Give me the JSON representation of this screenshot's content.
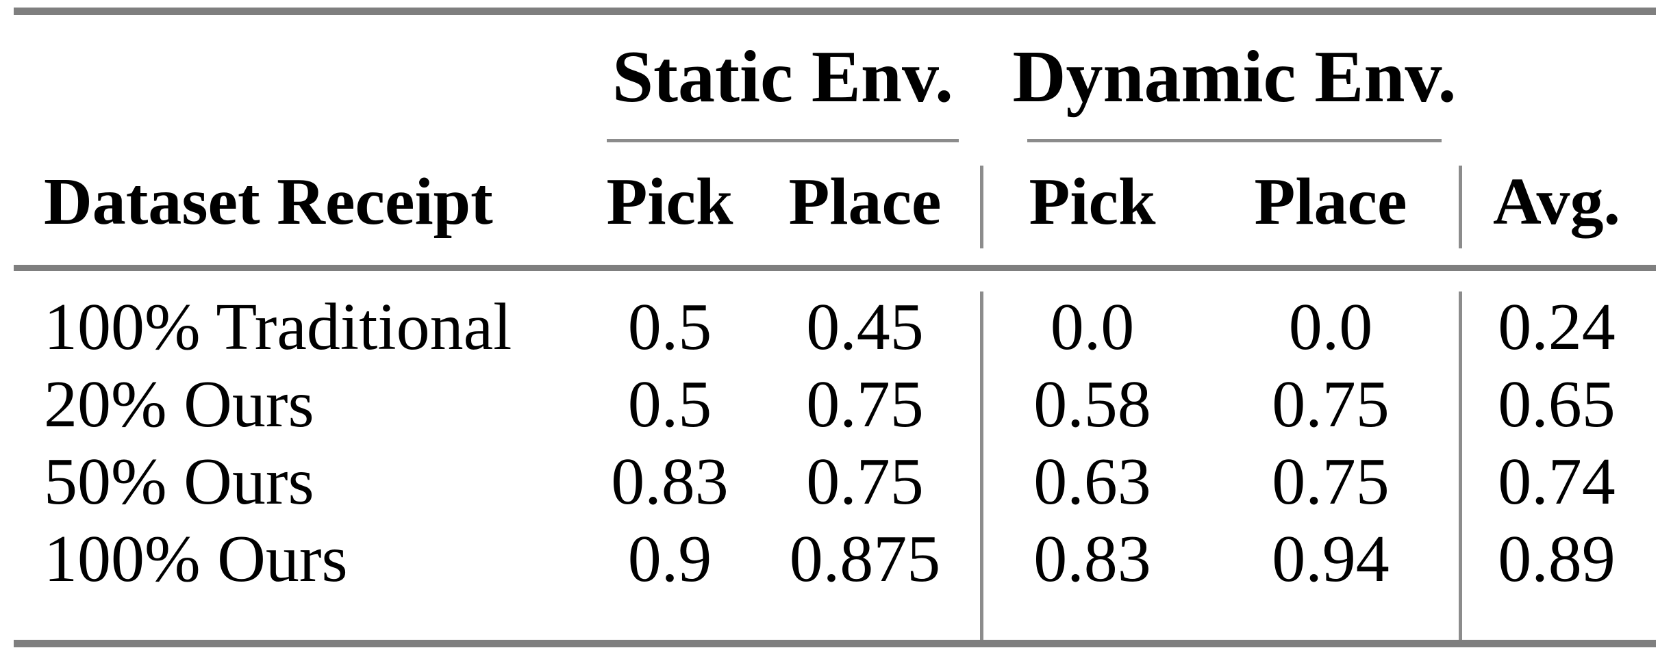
{
  "table": {
    "groups": [
      {
        "label": "Static Env."
      },
      {
        "label": "Dynamic Env."
      }
    ],
    "header": {
      "row_label": "Dataset Receipt",
      "cols": [
        "Pick",
        "Place",
        "Pick",
        "Place",
        "Avg."
      ]
    },
    "rows": [
      {
        "label": "100% Traditional",
        "values": [
          "0.5",
          "0.45",
          "0.0",
          "0.0",
          "0.24"
        ]
      },
      {
        "label": "20% Ours",
        "values": [
          "0.5",
          "0.75",
          "0.58",
          "0.75",
          "0.65"
        ]
      },
      {
        "label": "50% Ours",
        "values": [
          "0.83",
          "0.75",
          "0.63",
          "0.75",
          "0.74"
        ]
      },
      {
        "label": "100% Ours",
        "values": [
          "0.9",
          "0.875",
          "0.83",
          "0.94",
          "0.89"
        ]
      }
    ]
  },
  "chart_data": {
    "type": "table",
    "column_groups": [
      {
        "label": "Static Env.",
        "columns": [
          "Pick",
          "Place"
        ]
      },
      {
        "label": "Dynamic Env.",
        "columns": [
          "Pick",
          "Place"
        ]
      }
    ],
    "columns": [
      "Dataset Receipt",
      "Static Pick",
      "Static Place",
      "Dynamic Pick",
      "Dynamic Place",
      "Avg."
    ],
    "rows": [
      [
        "100% Traditional",
        0.5,
        0.45,
        0.0,
        0.0,
        0.24
      ],
      [
        "20% Ours",
        0.5,
        0.75,
        0.58,
        0.75,
        0.65
      ],
      [
        "50% Ours",
        0.83,
        0.75,
        0.63,
        0.75,
        0.74
      ],
      [
        "100% Ours",
        0.9,
        0.875,
        0.83,
        0.94,
        0.89
      ]
    ]
  },
  "colors": {
    "rule_gray": "#7f7f7f",
    "thin_rule_gray": "#8c8c8c",
    "text": "#000000",
    "background": "#ffffff"
  }
}
